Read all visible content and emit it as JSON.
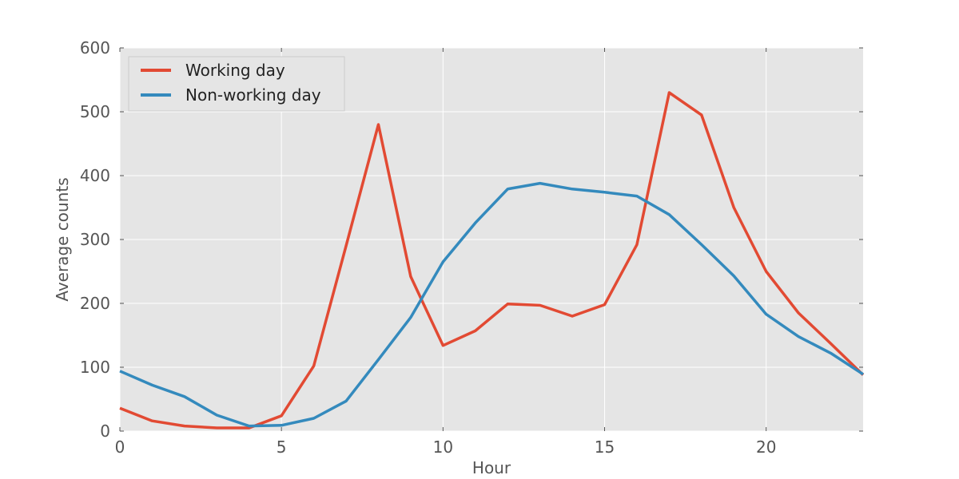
{
  "chart_data": {
    "type": "line",
    "title": "",
    "xlabel": "Hour",
    "ylabel": "Average counts",
    "xlim": [
      0,
      23
    ],
    "ylim": [
      0,
      600
    ],
    "xticks": [
      0,
      5,
      10,
      15,
      20
    ],
    "yticks": [
      0,
      100,
      200,
      300,
      400,
      500,
      600
    ],
    "x": [
      0,
      1,
      2,
      3,
      4,
      5,
      6,
      7,
      8,
      9,
      10,
      11,
      12,
      13,
      14,
      15,
      16,
      17,
      18,
      19,
      20,
      21,
      22,
      23
    ],
    "grid": true,
    "legend_position": "top-left",
    "background_color": "#e5e5e5",
    "series": [
      {
        "name": "Working day",
        "color": "#e24a33",
        "values": [
          36,
          16,
          8,
          5,
          5,
          24,
          102,
          290,
          480,
          242,
          134,
          157,
          199,
          197,
          180,
          198,
          292,
          530,
          495,
          350,
          250,
          185,
          137,
          88
        ]
      },
      {
        "name": "Non-working day",
        "color": "#348abd",
        "values": [
          94,
          72,
          54,
          25,
          8,
          9,
          20,
          47,
          112,
          178,
          265,
          326,
          379,
          388,
          379,
          374,
          368,
          339,
          292,
          243,
          183,
          148,
          122,
          89
        ]
      }
    ]
  }
}
